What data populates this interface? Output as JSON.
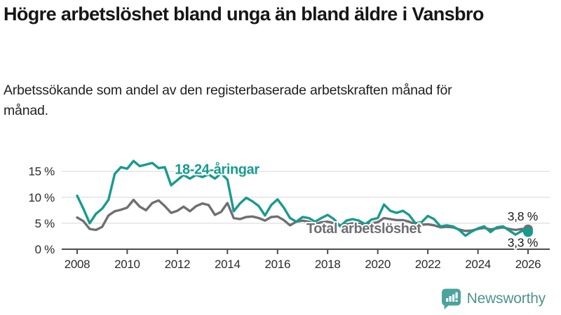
{
  "header": {
    "title": "Högre arbetslöshet bland unga än bland äldre i Vansbro",
    "subtitle": "Arbetssökande som andel av den registerbaserade arbetskraften månad för månad."
  },
  "chart_data": {
    "type": "line",
    "x": {
      "start": 2008,
      "step": 0.25,
      "unit": "year"
    },
    "xlim": [
      2008,
      2026
    ],
    "ylim": [
      0,
      17.5
    ],
    "grid": true,
    "xticks": [
      2008,
      2010,
      2012,
      2014,
      2016,
      2018,
      2020,
      2022,
      2024,
      2026
    ],
    "yticks": [
      {
        "value": 0,
        "label": "0 %"
      },
      {
        "value": 5,
        "label": "5 %"
      },
      {
        "value": 10,
        "label": "10 %"
      },
      {
        "value": 15,
        "label": "15 %"
      }
    ],
    "series": [
      {
        "name": "Total arbetslöshet",
        "color": "#6f6f73",
        "end_label": "3,8 %",
        "end_label_position": "above",
        "inline_label": {
          "x": 2017.15,
          "y": 3.9
        },
        "values": [
          6.1,
          5.4,
          3.9,
          3.7,
          4.3,
          6.5,
          7.3,
          7.6,
          8.0,
          9.5,
          8.2,
          7.5,
          8.9,
          9.4,
          8.3,
          7.0,
          7.4,
          8.2,
          7.3,
          8.3,
          8.8,
          8.5,
          6.6,
          7.2,
          8.9,
          6.0,
          5.8,
          6.2,
          6.3,
          6.0,
          5.5,
          6.2,
          6.3,
          5.6,
          4.6,
          5.3,
          5.5,
          5.3,
          4.8,
          5.2,
          5.3,
          5.0,
          4.6,
          4.8,
          5.0,
          4.9,
          4.7,
          5.0,
          5.2,
          6.0,
          5.8,
          5.6,
          5.6,
          5.3,
          4.8,
          4.7,
          4.8,
          4.6,
          4.2,
          4.3,
          4.2,
          3.8,
          3.5,
          3.6,
          3.9,
          4.1,
          3.8,
          4.0,
          4.2,
          3.9,
          3.7,
          3.9,
          3.8
        ]
      },
      {
        "name": "18-24-åringar",
        "color": "#169b8d",
        "end_label": "3,3 %",
        "end_label_position": "below",
        "inline_label": {
          "x": 2011.9,
          "y": 15.3
        },
        "values": [
          10.3,
          7.8,
          5.0,
          6.8,
          7.8,
          9.5,
          14.5,
          15.8,
          15.5,
          17.0,
          16.0,
          16.3,
          16.6,
          15.6,
          15.8,
          12.3,
          13.3,
          14.3,
          13.6,
          14.3,
          13.9,
          14.4,
          13.6,
          14.6,
          13.4,
          7.3,
          8.8,
          9.9,
          9.2,
          8.3,
          6.5,
          8.5,
          9.6,
          8.0,
          6.0,
          5.3,
          6.2,
          6.0,
          5.3,
          6.0,
          6.6,
          5.8,
          4.4,
          5.5,
          5.8,
          5.5,
          4.8,
          5.7,
          6.0,
          8.6,
          7.4,
          7.0,
          7.4,
          6.6,
          5.0,
          5.2,
          6.4,
          5.8,
          4.4,
          4.6,
          4.4,
          3.7,
          2.6,
          3.4,
          4.0,
          4.4,
          3.3,
          4.2,
          4.4,
          3.6,
          2.8,
          3.5,
          3.3
        ]
      }
    ]
  },
  "branding": {
    "logo_text": "Newsworthy",
    "logo_bubble_color": "#4aa49e",
    "logo_text_color": "#4e948f"
  }
}
